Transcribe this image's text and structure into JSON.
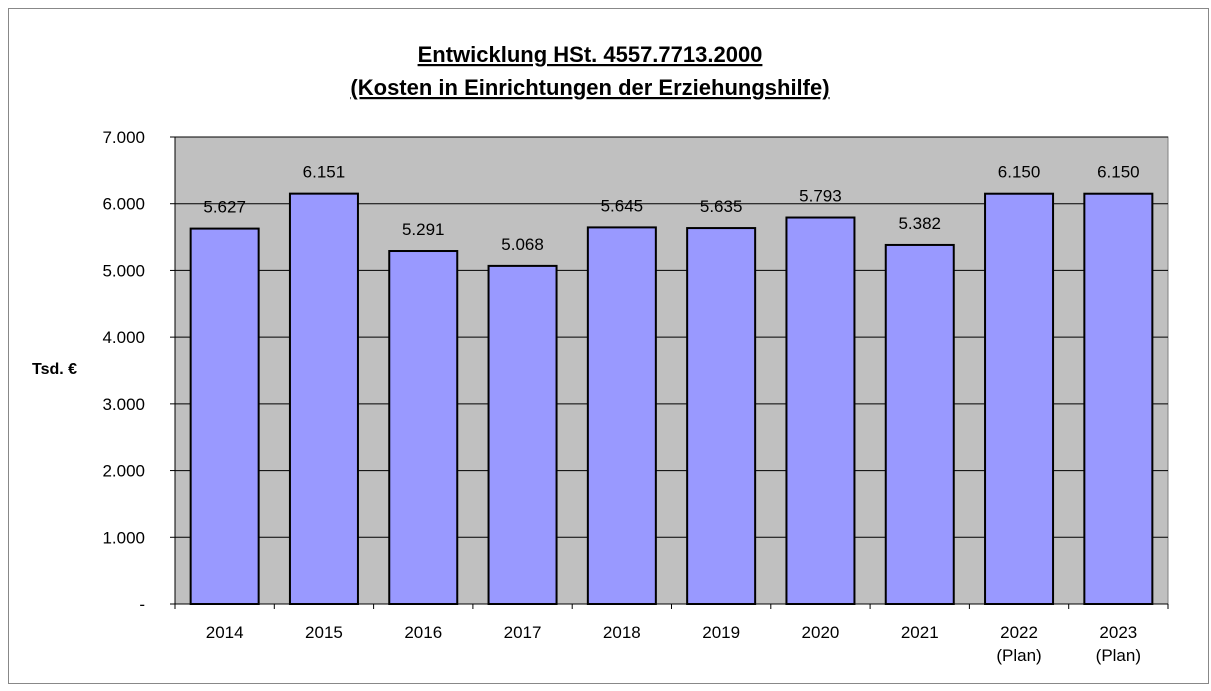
{
  "chart_data": {
    "type": "bar",
    "title": "Entwicklung HSt. 4557.7713.2000",
    "subtitle": "(Kosten in Einrichtungen der Erziehungshilfe)",
    "ylabel": "Tsd. €",
    "xlabel": "",
    "categories": [
      [
        "2014"
      ],
      [
        "2015"
      ],
      [
        "2016"
      ],
      [
        "2017"
      ],
      [
        "2018"
      ],
      [
        "2019"
      ],
      [
        "2020"
      ],
      [
        "2021"
      ],
      [
        "2022",
        "(Plan)"
      ],
      [
        "2023",
        "(Plan)"
      ]
    ],
    "values": [
      5627,
      6151,
      5291,
      5068,
      5645,
      5635,
      5793,
      5382,
      6150,
      6150
    ],
    "value_labels": [
      "5.627",
      "6.151",
      "5.291",
      "5.068",
      "5.645",
      "5.635",
      "5.793",
      "5.382",
      "6.150",
      "6.150"
    ],
    "ylim": [
      0,
      7000
    ],
    "yticks": [
      0,
      1000,
      2000,
      3000,
      4000,
      5000,
      6000,
      7000
    ],
    "ytick_labels": [
      "-",
      "1.000",
      "2.000",
      "3.000",
      "4.000",
      "5.000",
      "6.000",
      "7.000"
    ],
    "grid": true,
    "legend": "none",
    "colors": {
      "bar_fill": "#9999ff",
      "bar_stroke": "#000000",
      "plot_background": "#c0c0c0",
      "gridline": "#000000"
    }
  }
}
